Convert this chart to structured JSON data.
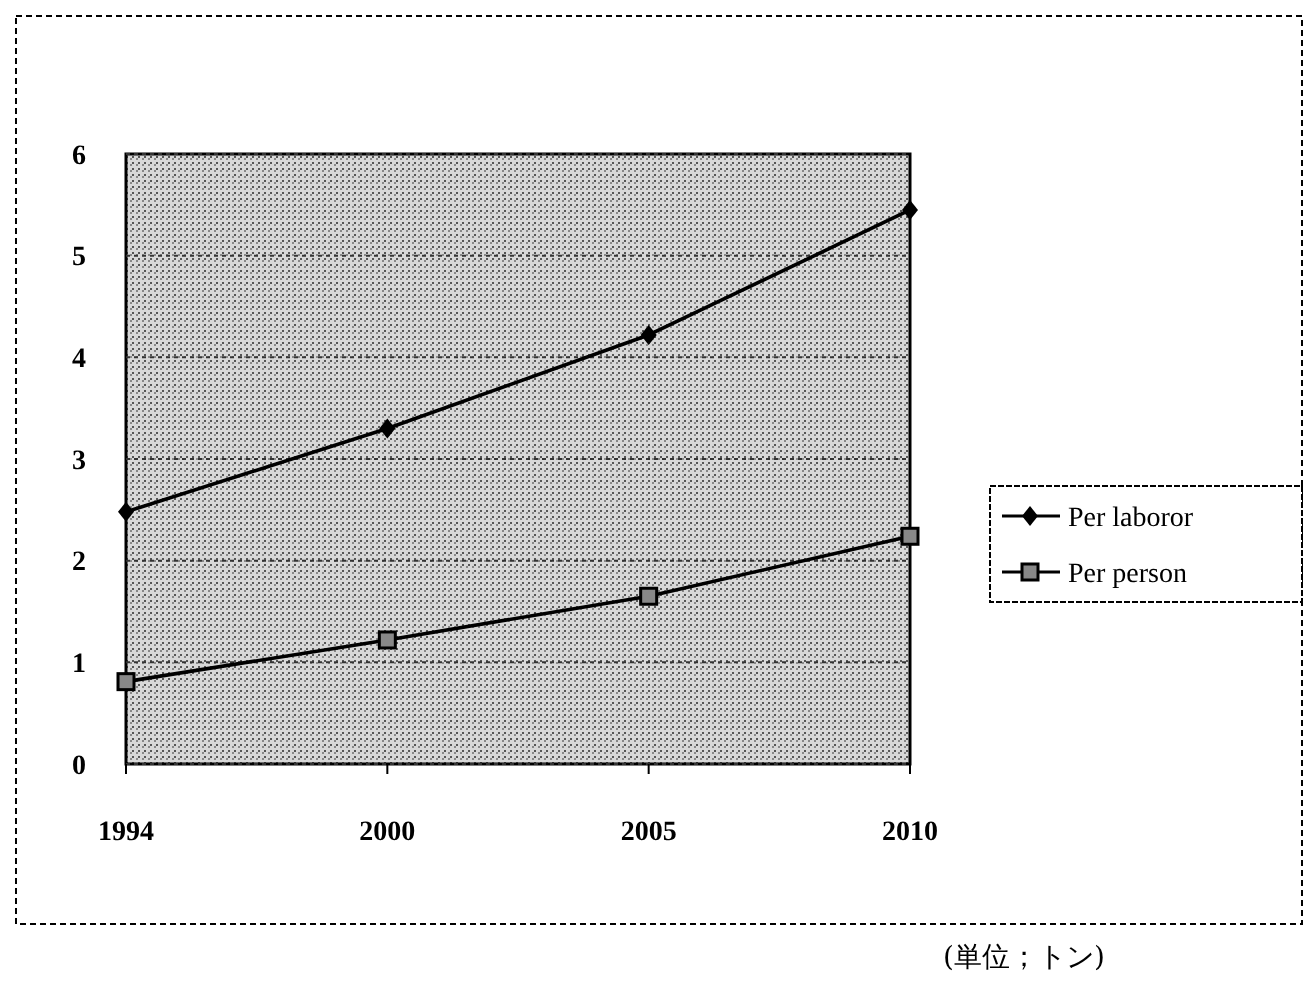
{
  "chart_data": {
    "type": "line",
    "categories": [
      "1994",
      "2000",
      "2005",
      "2010"
    ],
    "series": [
      {
        "name": "Per laboror",
        "color": "#000000",
        "marker": "diamond",
        "values": [
          2.48,
          3.3,
          4.22,
          5.45
        ]
      },
      {
        "name": "Per person",
        "color": "#000000",
        "marker": "square",
        "values": [
          0.81,
          1.22,
          1.65,
          2.24
        ]
      }
    ],
    "ylim": [
      0,
      6
    ],
    "yticks": [
      0,
      1,
      2,
      3,
      4,
      5,
      6
    ],
    "grid": "y",
    "legend": "right",
    "line_style": "solid",
    "annotations": [
      "(単位；トン)"
    ]
  }
}
